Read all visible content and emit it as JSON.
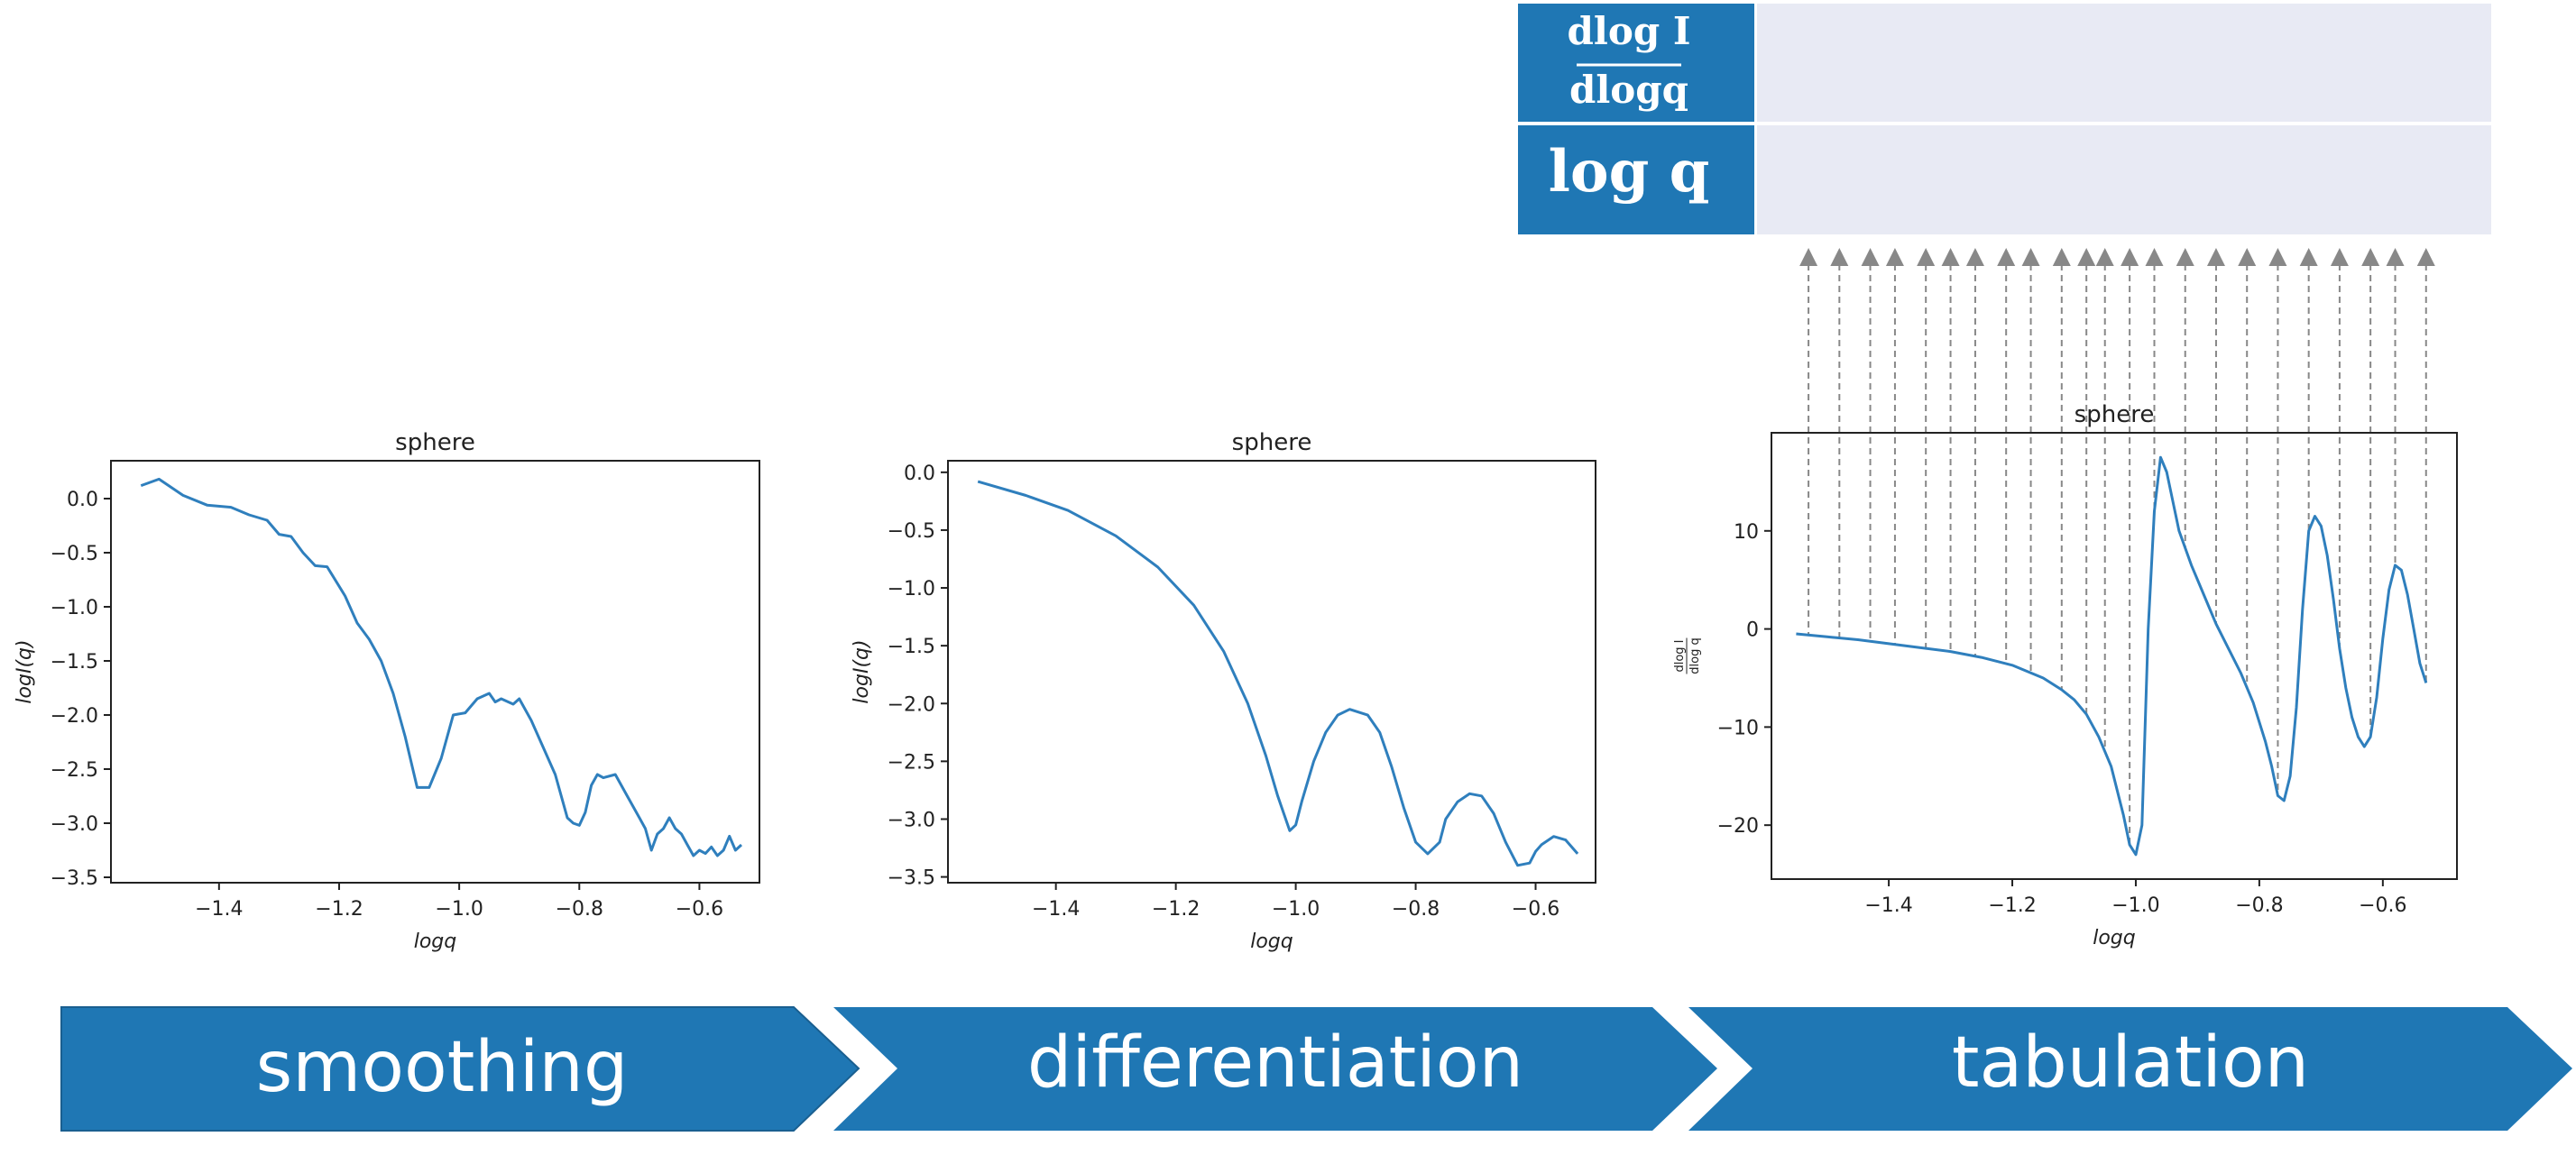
{
  "colors": {
    "line": "#2f7fbd",
    "chevron": "#1f77b4",
    "table_header": "#1f77b4",
    "table_body": "#e8eaf4",
    "arrow": "#888888"
  },
  "table": {
    "row1_header": {
      "num": "dlog I",
      "den": "dlogq"
    },
    "row2_header": "log q"
  },
  "steps": [
    {
      "label": "smoothing"
    },
    {
      "label": "differentiation"
    },
    {
      "label": "tabulation"
    }
  ],
  "chart_data": [
    {
      "type": "line",
      "title": "sphere",
      "xlabel": "logq",
      "ylabel": "logI(q)",
      "xlim": [
        -1.58,
        -0.5
      ],
      "ylim": [
        -3.55,
        0.35
      ],
      "xticks": [
        -1.4,
        -1.2,
        -1.0,
        -0.8,
        -0.6
      ],
      "xtick_labels": [
        "−1.4",
        "−1.2",
        "−1.0",
        "−0.8",
        "−0.6"
      ],
      "yticks": [
        0.0,
        -0.5,
        -1.0,
        -1.5,
        -2.0,
        -2.5,
        -3.0,
        -3.5
      ],
      "ytick_labels": [
        "0.0",
        "−0.5",
        "−1.0",
        "−1.5",
        "−2.0",
        "−2.5",
        "−3.0",
        "−3.5"
      ],
      "series": [
        {
          "x": [
            -1.53,
            -1.5,
            -1.46,
            -1.42,
            -1.38,
            -1.35,
            -1.32,
            -1.3,
            -1.28,
            -1.26,
            -1.24,
            -1.22,
            -1.19,
            -1.17,
            -1.15,
            -1.13,
            -1.11,
            -1.09,
            -1.07,
            -1.05,
            -1.03,
            -1.01,
            -0.99,
            -0.97,
            -0.95,
            -0.94,
            -0.93,
            -0.91,
            -0.9,
            -0.88,
            -0.86,
            -0.84,
            -0.82,
            -0.81,
            -0.8,
            -0.79,
            -0.78,
            -0.77,
            -0.76,
            -0.74,
            -0.72,
            -0.71,
            -0.7,
            -0.69,
            -0.68,
            -0.67,
            -0.66,
            -0.65,
            -0.64,
            -0.63,
            -0.62,
            -0.61,
            -0.6,
            -0.59,
            -0.58,
            -0.57,
            -0.56,
            -0.55,
            -0.54,
            -0.53
          ],
          "y": [
            0.12,
            0.18,
            0.03,
            -0.06,
            -0.08,
            -0.15,
            -0.2,
            -0.33,
            -0.35,
            -0.5,
            -0.62,
            -0.63,
            -0.9,
            -1.15,
            -1.3,
            -1.5,
            -1.8,
            -2.2,
            -2.67,
            -2.67,
            -2.4,
            -2.0,
            -1.98,
            -1.85,
            -1.8,
            -1.88,
            -1.85,
            -1.9,
            -1.85,
            -2.05,
            -2.3,
            -2.55,
            -2.95,
            -3.0,
            -3.02,
            -2.9,
            -2.65,
            -2.55,
            -2.58,
            -2.55,
            -2.75,
            -2.85,
            -2.95,
            -3.05,
            -3.25,
            -3.1,
            -3.05,
            -2.95,
            -3.05,
            -3.1,
            -3.2,
            -3.3,
            -3.25,
            -3.28,
            -3.22,
            -3.3,
            -3.25,
            -3.12,
            -3.25,
            -3.2
          ]
        }
      ]
    },
    {
      "type": "line",
      "title": "sphere",
      "xlabel": "logq",
      "ylabel": "logI(q)",
      "xlim": [
        -1.58,
        -0.5
      ],
      "ylim": [
        -3.55,
        0.1
      ],
      "xticks": [
        -1.4,
        -1.2,
        -1.0,
        -0.8,
        -0.6
      ],
      "xtick_labels": [
        "−1.4",
        "−1.2",
        "−1.0",
        "−0.8",
        "−0.6"
      ],
      "yticks": [
        0.0,
        -0.5,
        -1.0,
        -1.5,
        -2.0,
        -2.5,
        -3.0,
        -3.5
      ],
      "ytick_labels": [
        "0.0",
        "−0.5",
        "−1.0",
        "−1.5",
        "−2.0",
        "−2.5",
        "−3.0",
        "−3.5"
      ],
      "series": [
        {
          "x": [
            -1.53,
            -1.45,
            -1.38,
            -1.3,
            -1.23,
            -1.17,
            -1.12,
            -1.08,
            -1.05,
            -1.03,
            -1.01,
            -1.0,
            -0.99,
            -0.97,
            -0.95,
            -0.93,
            -0.91,
            -0.88,
            -0.86,
            -0.84,
            -0.82,
            -0.8,
            -0.78,
            -0.76,
            -0.75,
            -0.73,
            -0.71,
            -0.69,
            -0.67,
            -0.65,
            -0.63,
            -0.61,
            -0.6,
            -0.59,
            -0.57,
            -0.55,
            -0.53
          ],
          "y": [
            -0.08,
            -0.2,
            -0.33,
            -0.55,
            -0.82,
            -1.15,
            -1.55,
            -2.0,
            -2.45,
            -2.8,
            -3.1,
            -3.05,
            -2.85,
            -2.5,
            -2.25,
            -2.1,
            -2.05,
            -2.1,
            -2.25,
            -2.55,
            -2.9,
            -3.2,
            -3.3,
            -3.2,
            -3.0,
            -2.85,
            -2.78,
            -2.8,
            -2.95,
            -3.2,
            -3.4,
            -3.38,
            -3.28,
            -3.22,
            -3.15,
            -3.18,
            -3.3
          ]
        }
      ]
    },
    {
      "type": "line",
      "title": "sphere",
      "xlabel": "logq",
      "ylabel": "dlog I / dlog q",
      "xlim": [
        -1.59,
        -0.48
      ],
      "ylim": [
        -25.5,
        20
      ],
      "xticks": [
        -1.4,
        -1.2,
        -1.0,
        -0.8,
        -0.6
      ],
      "xtick_labels": [
        "−1.4",
        "−1.2",
        "−1.0",
        "−0.8",
        "−0.6"
      ],
      "yticks": [
        10,
        0,
        -10,
        -20
      ],
      "ytick_labels": [
        "10",
        "0",
        "−10",
        "−20"
      ],
      "tabulation_points_x": [
        -1.53,
        -1.48,
        -1.43,
        -1.39,
        -1.34,
        -1.3,
        -1.26,
        -1.21,
        -1.17,
        -1.12,
        -1.08,
        -1.05,
        -1.01,
        -0.97,
        -0.92,
        -0.87,
        -0.82,
        -0.77,
        -0.72,
        -0.67,
        -0.62,
        -0.58,
        -0.53
      ],
      "series": [
        {
          "x": [
            -1.55,
            -1.5,
            -1.45,
            -1.4,
            -1.35,
            -1.3,
            -1.25,
            -1.2,
            -1.15,
            -1.12,
            -1.1,
            -1.08,
            -1.06,
            -1.04,
            -1.02,
            -1.01,
            -1.0,
            -0.99,
            -0.98,
            -0.97,
            -0.96,
            -0.95,
            -0.93,
            -0.91,
            -0.89,
            -0.87,
            -0.85,
            -0.83,
            -0.81,
            -0.79,
            -0.78,
            -0.77,
            -0.76,
            -0.75,
            -0.74,
            -0.73,
            -0.72,
            -0.71,
            -0.7,
            -0.69,
            -0.68,
            -0.67,
            -0.66,
            -0.65,
            -0.64,
            -0.63,
            -0.62,
            -0.61,
            -0.6,
            -0.59,
            -0.58,
            -0.57,
            -0.56,
            -0.55,
            -0.54,
            -0.53
          ],
          "y": [
            -0.5,
            -0.8,
            -1.1,
            -1.5,
            -1.9,
            -2.3,
            -2.9,
            -3.7,
            -5.0,
            -6.2,
            -7.2,
            -8.7,
            -11.0,
            -14.0,
            -19.0,
            -22.0,
            -23.0,
            -20.0,
            0.0,
            12.0,
            17.5,
            16.0,
            10.0,
            6.5,
            3.5,
            0.5,
            -2.0,
            -4.5,
            -7.5,
            -11.5,
            -14.0,
            -17.0,
            -17.5,
            -15.0,
            -8.0,
            2.0,
            10.0,
            11.5,
            10.5,
            7.5,
            3.0,
            -2.0,
            -6.0,
            -9.0,
            -11.0,
            -12.0,
            -11.0,
            -7.0,
            -1.0,
            4.0,
            6.5,
            6.0,
            3.5,
            0.0,
            -3.5,
            -5.5
          ]
        }
      ]
    }
  ]
}
